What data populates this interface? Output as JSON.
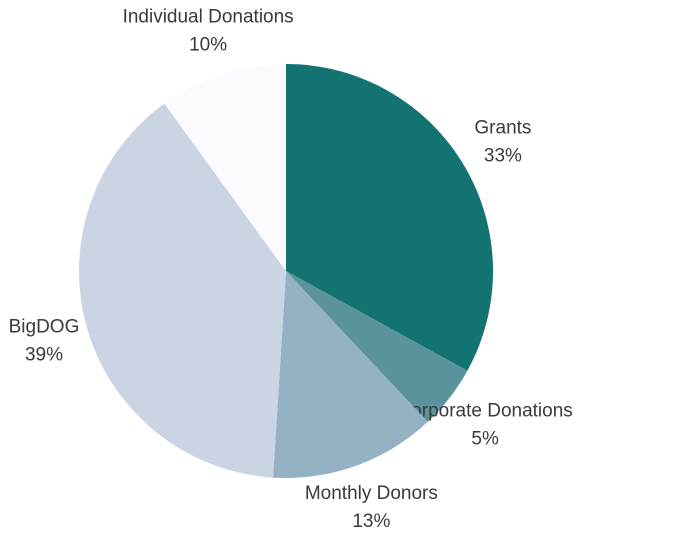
{
  "chart_data": {
    "type": "pie",
    "categories": [
      "Grants",
      "Corporate Donations",
      "Monthly Donors",
      "BigDOG",
      "Individual Donations"
    ],
    "values": [
      33,
      5,
      13,
      39,
      10
    ],
    "value_labels": [
      "33%",
      "5%",
      "13%",
      "39%",
      "10%"
    ],
    "colors": [
      "#127370",
      "#5a939c",
      "#95b1c4",
      "#cad4e2",
      "#fafaff"
    ]
  }
}
